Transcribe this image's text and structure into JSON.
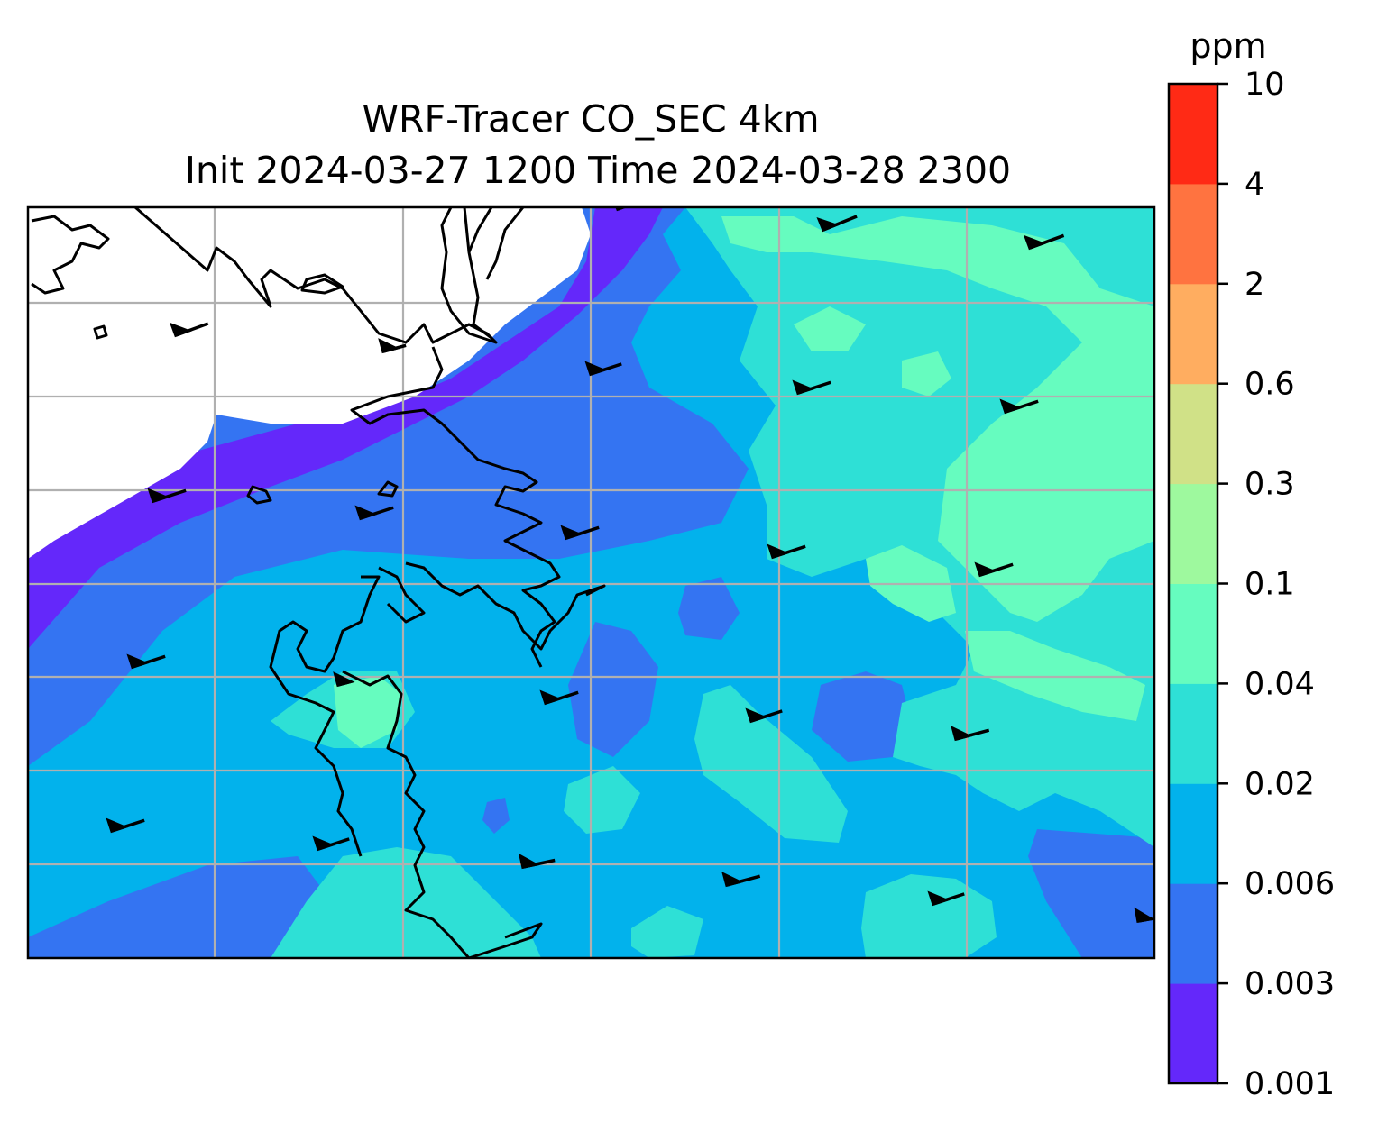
{
  "title": {
    "line1": "WRF-Tracer CO_SEC 4km",
    "line2": "Init 2024-03-27 1200 Time 2024-03-28 2300"
  },
  "colorbar": {
    "unit": "ppm",
    "levels": [
      "0.001",
      "0.003",
      "0.006",
      "0.02",
      "0.04",
      "0.1",
      "0.3",
      "0.6",
      "2",
      "4",
      "10"
    ],
    "colors": [
      "#6428fa",
      "#3474f2",
      "#02b2ec",
      "#2ee0d6",
      "#66fcbf",
      "#9ef99e",
      "#d0e187",
      "#ffad60",
      "#ff7340",
      "#ff2a15"
    ]
  },
  "map": {
    "field": "CO_SEC tracer concentration",
    "no_data_color": "#ffffff",
    "gridlines": "on",
    "wind_barbs": "on",
    "coastlines": "on"
  }
}
